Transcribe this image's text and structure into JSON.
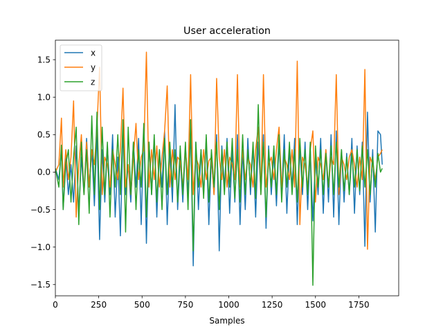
{
  "chart_data": {
    "type": "line",
    "title": "User acceleration",
    "xlabel": "Samples",
    "ylabel": "",
    "xlim": [
      0,
      1980
    ],
    "ylim": [
      -1.65,
      1.76
    ],
    "x_ticks": [
      0,
      250,
      500,
      750,
      1000,
      1250,
      1500,
      1750
    ],
    "x_tick_labels": [
      "0",
      "250",
      "500",
      "750",
      "1000",
      "1250",
      "1500",
      "1750"
    ],
    "y_ticks": [
      -1.5,
      -1.0,
      -0.5,
      0.0,
      0.5,
      1.0,
      1.5
    ],
    "y_tick_labels": [
      "−1.5",
      "−1.0",
      "−0.5",
      "0.0",
      "0.5",
      "1.0",
      "1.5"
    ],
    "grid": false,
    "legend_position": "upper-left",
    "colors": {
      "x": "#1f77b4",
      "y": "#ff7f0e",
      "z": "#2ca02c"
    },
    "series": [
      {
        "name": "x",
        "x": [
          0,
          20,
          35,
          45,
          60,
          75,
          90,
          105,
          120,
          135,
          150,
          165,
          180,
          195,
          210,
          225,
          240,
          255,
          270,
          285,
          300,
          315,
          330,
          345,
          360,
          375,
          390,
          405,
          420,
          435,
          450,
          465,
          480,
          495,
          510,
          525,
          540,
          555,
          570,
          585,
          600,
          615,
          630,
          645,
          660,
          675,
          690,
          705,
          720,
          735,
          750,
          765,
          780,
          795,
          810,
          825,
          840,
          855,
          870,
          885,
          900,
          915,
          930,
          945,
          960,
          975,
          990,
          1005,
          1020,
          1035,
          1050,
          1065,
          1080,
          1095,
          1110,
          1125,
          1140,
          1155,
          1170,
          1185,
          1200,
          1215,
          1230,
          1245,
          1260,
          1275,
          1290,
          1305,
          1320,
          1335,
          1350,
          1365,
          1380,
          1395,
          1410,
          1425,
          1440,
          1455,
          1470,
          1485,
          1500,
          1515,
          1530,
          1545,
          1560,
          1575,
          1590,
          1605,
          1620,
          1635,
          1650,
          1665,
          1680,
          1695,
          1710,
          1725,
          1740,
          1755,
          1770,
          1785,
          1800,
          1815,
          1830,
          1845,
          1860,
          1875,
          1885
        ],
        "values": [
          0.05,
          -0.1,
          0.3,
          -0.5,
          0.2,
          -0.3,
          0.1,
          -0.4,
          0.35,
          -0.55,
          0.2,
          -0.3,
          0.45,
          -0.2,
          0.3,
          -0.45,
          0.55,
          -0.9,
          0.3,
          -0.4,
          0.35,
          -0.3,
          0.5,
          -0.6,
          0.2,
          -0.85,
          0.55,
          -0.3,
          0.1,
          -0.4,
          0.4,
          -0.2,
          0.45,
          -0.7,
          0.6,
          -0.95,
          0.4,
          -0.3,
          0.45,
          -0.6,
          0.3,
          -0.2,
          0.55,
          -0.7,
          0.3,
          -0.4,
          0.9,
          -0.5,
          0.2,
          -0.4,
          0.35,
          -0.3,
          0.55,
          -1.25,
          0.4,
          -0.5,
          0.3,
          -0.3,
          0.45,
          -0.7,
          0.2,
          -0.3,
          0.5,
          -1.05,
          0.35,
          -0.2,
          0.45,
          -0.55,
          0.3,
          -0.4,
          0.5,
          -0.7,
          0.3,
          -0.5,
          0.45,
          -0.3,
          0.35,
          -0.6,
          0.4,
          -0.25,
          0.5,
          -0.75,
          0.35,
          -0.3,
          0.25,
          -0.45,
          0.4,
          -0.3,
          0.5,
          -0.55,
          0.3,
          -0.2,
          0.45,
          -0.7,
          0.35,
          -0.3,
          0.4,
          -0.5,
          0.3,
          -0.65,
          0.2,
          -0.3,
          0.45,
          -0.55,
          0.3,
          -0.4,
          0.5,
          -0.6,
          0.55,
          -0.7,
          0.3,
          -0.4,
          0.25,
          -0.3,
          0.45,
          -0.55,
          0.35,
          -0.3,
          0.4,
          -0.99,
          0.8,
          -0.4,
          0.3,
          -0.8,
          0.55,
          0.5,
          0.1
        ]
      },
      {
        "name": "y",
        "x": [
          0,
          20,
          35,
          45,
          60,
          75,
          90,
          105,
          120,
          135,
          150,
          165,
          180,
          195,
          210,
          225,
          240,
          255,
          270,
          285,
          300,
          315,
          330,
          345,
          360,
          375,
          390,
          405,
          420,
          435,
          450,
          465,
          480,
          495,
          510,
          525,
          540,
          555,
          570,
          585,
          600,
          615,
          630,
          645,
          660,
          675,
          690,
          705,
          720,
          735,
          750,
          765,
          780,
          795,
          810,
          825,
          840,
          855,
          870,
          885,
          900,
          915,
          930,
          945,
          960,
          975,
          990,
          1005,
          1020,
          1035,
          1050,
          1065,
          1080,
          1095,
          1110,
          1125,
          1140,
          1155,
          1170,
          1185,
          1200,
          1215,
          1230,
          1245,
          1260,
          1275,
          1290,
          1305,
          1320,
          1335,
          1350,
          1365,
          1380,
          1395,
          1410,
          1425,
          1440,
          1455,
          1470,
          1485,
          1500,
          1515,
          1530,
          1545,
          1560,
          1575,
          1590,
          1605,
          1620,
          1635,
          1650,
          1665,
          1680,
          1695,
          1710,
          1725,
          1740,
          1755,
          1770,
          1785,
          1800,
          1815,
          1830,
          1845,
          1860,
          1875,
          1885
        ],
        "values": [
          0.0,
          0.1,
          0.72,
          -0.2,
          0.3,
          -0.1,
          0.2,
          0.95,
          -0.6,
          0.1,
          0.5,
          -0.3,
          0.4,
          -0.2,
          0.3,
          0.1,
          0.6,
          1.4,
          -0.3,
          0.2,
          0.1,
          -0.2,
          0.3,
          0.1,
          -0.1,
          0.3,
          1.12,
          -0.2,
          0.1,
          -0.3,
          0.2,
          0.65,
          -0.1,
          0.2,
          0.3,
          1.6,
          -0.2,
          0.3,
          -0.1,
          0.35,
          -0.2,
          0.2,
          0.55,
          1.15,
          -0.2,
          0.3,
          -0.1,
          0.2,
          0.15,
          -0.2,
          0.3,
          -0.1,
          1.3,
          -0.3,
          0.2,
          0.1,
          -0.2,
          0.3,
          -0.1,
          0.15,
          0.2,
          -0.3,
          1.25,
          0.2,
          -0.1,
          0.3,
          -0.2,
          0.2,
          0.1,
          -0.1,
          1.3,
          -0.2,
          0.3,
          -0.1,
          0.2,
          0.1,
          -0.2,
          0.3,
          0.6,
          -0.3,
          1.3,
          -0.2,
          0.1,
          0.2,
          -0.1,
          0.3,
          0.6,
          -0.2,
          0.2,
          0.1,
          -0.1,
          0.3,
          -0.2,
          1.48,
          -0.7,
          0.2,
          0.1,
          -0.2,
          0.3,
          0.55,
          -0.4,
          0.2,
          0.1,
          -0.1,
          0.3,
          -0.2,
          0.2,
          0.1,
          1.3,
          -0.3,
          0.2,
          0.1,
          -0.1,
          0.2,
          0.3,
          0.1,
          -0.2,
          0.2,
          -0.1,
          1.37,
          -1.03,
          0.2,
          0.1,
          -0.1,
          0.2,
          0.25,
          0.3
        ]
      },
      {
        "name": "z",
        "x": [
          0,
          20,
          35,
          45,
          60,
          75,
          90,
          105,
          120,
          135,
          150,
          165,
          180,
          195,
          210,
          225,
          240,
          255,
          270,
          285,
          300,
          315,
          330,
          345,
          360,
          375,
          390,
          405,
          420,
          435,
          450,
          465,
          480,
          495,
          510,
          525,
          540,
          555,
          570,
          585,
          600,
          615,
          630,
          645,
          660,
          675,
          690,
          705,
          720,
          735,
          750,
          765,
          780,
          795,
          810,
          825,
          840,
          855,
          870,
          885,
          900,
          915,
          930,
          945,
          960,
          975,
          990,
          1005,
          1020,
          1035,
          1050,
          1065,
          1080,
          1095,
          1110,
          1125,
          1140,
          1155,
          1170,
          1185,
          1200,
          1215,
          1230,
          1245,
          1260,
          1275,
          1290,
          1305,
          1320,
          1335,
          1350,
          1365,
          1380,
          1395,
          1410,
          1425,
          1440,
          1455,
          1470,
          1485,
          1500,
          1515,
          1530,
          1545,
          1560,
          1575,
          1590,
          1605,
          1620,
          1635,
          1650,
          1665,
          1680,
          1695,
          1710,
          1725,
          1740,
          1755,
          1770,
          1785,
          1800,
          1815,
          1830,
          1845,
          1860,
          1875,
          1885
        ],
        "values": [
          0.05,
          -0.2,
          0.36,
          -0.5,
          0.1,
          0.3,
          -0.4,
          0.2,
          0.6,
          -0.7,
          0.4,
          -0.3,
          0.3,
          -0.55,
          0.75,
          -0.3,
          0.8,
          -0.5,
          0.6,
          -0.3,
          0.4,
          -0.6,
          0.3,
          -0.2,
          0.5,
          -0.3,
          0.7,
          -0.8,
          0.6,
          -0.3,
          0.4,
          -0.5,
          0.3,
          -0.2,
          0.65,
          -0.6,
          0.4,
          -0.3,
          0.5,
          -0.4,
          0.3,
          -0.5,
          0.45,
          -0.3,
          0.4,
          -0.2,
          0.3,
          -0.4,
          0.35,
          -0.3,
          0.4,
          -0.5,
          0.7,
          -1.05,
          0.4,
          -0.2,
          0.3,
          -0.35,
          0.5,
          -0.4,
          0.3,
          -0.2,
          0.4,
          -0.5,
          0.3,
          -0.3,
          0.4,
          -0.2,
          0.45,
          -0.35,
          0.3,
          -0.4,
          0.5,
          -0.3,
          0.3,
          -0.2,
          0.4,
          -0.35,
          0.9,
          -0.3,
          0.4,
          -0.6,
          0.3,
          -0.2,
          0.35,
          -0.3,
          0.5,
          -0.4,
          0.3,
          -0.2,
          0.4,
          -0.3,
          0.3,
          -0.4,
          0.45,
          -0.2,
          0.3,
          -0.3,
          0.4,
          -1.51,
          0.35,
          -0.2,
          0.3,
          -0.3,
          0.25,
          -0.2,
          0.35,
          -0.3,
          0.4,
          -0.2,
          0.3,
          -0.25,
          0.2,
          -0.3,
          0.25,
          -0.2,
          0.3,
          -0.25,
          0.35,
          -0.2,
          0.3,
          -0.3,
          0.2,
          -0.2,
          0.25,
          0.0,
          0.05
        ]
      }
    ]
  }
}
